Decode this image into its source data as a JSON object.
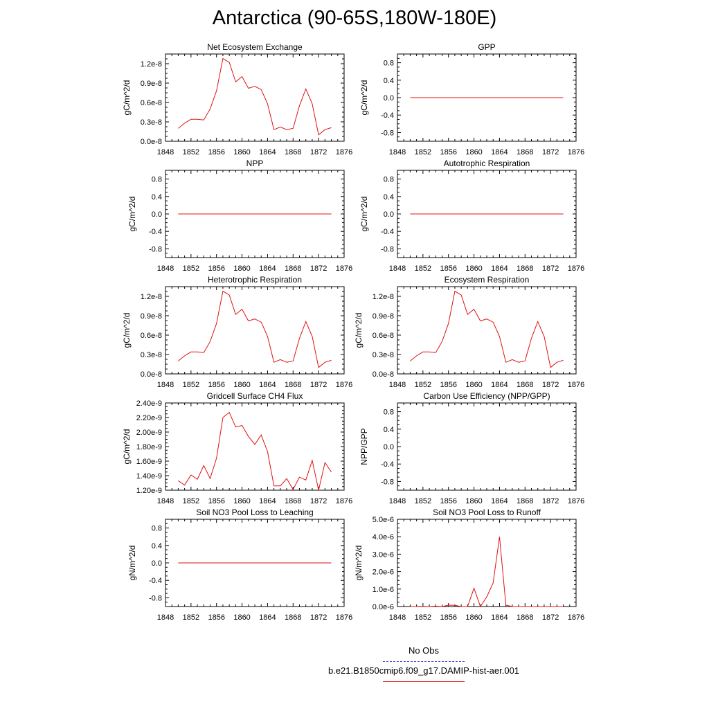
{
  "page": {
    "title": "Antarctica (90-65S,180W-180E)"
  },
  "legend": {
    "obs_label": "No Obs",
    "obs_color": "#3a3ae0",
    "case_label": "b.e21.B1850cmip6.f09_g17.DAMIP-hist-aer.001",
    "case_color": "#e01010"
  },
  "chart_data": [
    {
      "type": "line",
      "title": "Net Ecosystem Exchange",
      "ylabel": "gC/m^2/d",
      "xlim": [
        1848,
        1876
      ],
      "xticks": [
        "1848",
        "1852",
        "1856",
        "1860",
        "1864",
        "1868",
        "1872",
        "1876"
      ],
      "ylim": [
        0,
        1.35e-08
      ],
      "yticks": [
        0,
        3e-09,
        6e-09,
        9e-09,
        1.2e-08
      ],
      "yticklabels": [
        "0.0e-8",
        "0.3e-8",
        "0.6e-8",
        "0.9e-8",
        "1.2e-8"
      ],
      "x": [
        1850,
        1851,
        1852,
        1853,
        1854,
        1855,
        1856,
        1857,
        1858,
        1859,
        1860,
        1861,
        1862,
        1863,
        1864,
        1865,
        1866,
        1867,
        1868,
        1869,
        1870,
        1871,
        1872,
        1873,
        1874
      ],
      "series": [
        {
          "color": "#e01010",
          "values": [
            2e-09,
            2.8e-09,
            3.4e-09,
            3.4e-09,
            3.3e-09,
            5e-09,
            7.8e-09,
            1.28e-08,
            1.22e-08,
            9.2e-09,
            1e-08,
            8.2e-09,
            8.5e-09,
            8e-09,
            5.8e-09,
            1.8e-09,
            2.2e-09,
            1.8e-09,
            2e-09,
            5.5e-09,
            8.1e-09,
            5.8e-09,
            1e-09,
            1.8e-09,
            2.1e-09
          ]
        }
      ]
    },
    {
      "type": "line",
      "title": "GPP",
      "ylabel": "gC/m^2/d",
      "xlim": [
        1848,
        1876
      ],
      "xticks": [
        "1848",
        "1852",
        "1856",
        "1860",
        "1864",
        "1868",
        "1872",
        "1876"
      ],
      "ylim": [
        -1,
        1
      ],
      "yticks": [
        -0.8,
        -0.4,
        0,
        0.4,
        0.8
      ],
      "yticklabels": [
        "-0.8",
        "-0.4",
        "0.0",
        "0.4",
        "0.8"
      ],
      "x": [
        1850,
        1874
      ],
      "series": [
        {
          "color": "#e01010",
          "values": [
            0,
            0
          ]
        }
      ]
    },
    {
      "type": "line",
      "title": "NPP",
      "ylabel": "gC/m^2/d",
      "xlim": [
        1848,
        1876
      ],
      "xticks": [
        "1848",
        "1852",
        "1856",
        "1860",
        "1864",
        "1868",
        "1872",
        "1876"
      ],
      "ylim": [
        -1,
        1
      ],
      "yticks": [
        -0.8,
        -0.4,
        0,
        0.4,
        0.8
      ],
      "yticklabels": [
        "-0.8",
        "-0.4",
        "0.0",
        "0.4",
        "0.8"
      ],
      "x": [
        1850,
        1874
      ],
      "series": [
        {
          "color": "#e01010",
          "values": [
            0,
            0
          ]
        }
      ]
    },
    {
      "type": "line",
      "title": "Autotrophic Respiration",
      "ylabel": "gC/m^2/d",
      "xlim": [
        1848,
        1876
      ],
      "xticks": [
        "1848",
        "1852",
        "1856",
        "1860",
        "1864",
        "1868",
        "1872",
        "1876"
      ],
      "ylim": [
        -1,
        1
      ],
      "yticks": [
        -0.8,
        -0.4,
        0,
        0.4,
        0.8
      ],
      "yticklabels": [
        "-0.8",
        "-0.4",
        "0.0",
        "0.4",
        "0.8"
      ],
      "x": [
        1850,
        1874
      ],
      "series": [
        {
          "color": "#e01010",
          "values": [
            0,
            0
          ]
        }
      ]
    },
    {
      "type": "line",
      "title": "Heterotrophic Respiration",
      "ylabel": "gC/m^2/d",
      "xlim": [
        1848,
        1876
      ],
      "xticks": [
        "1848",
        "1852",
        "1856",
        "1860",
        "1864",
        "1868",
        "1872",
        "1876"
      ],
      "ylim": [
        0,
        1.35e-08
      ],
      "yticks": [
        0,
        3e-09,
        6e-09,
        9e-09,
        1.2e-08
      ],
      "yticklabels": [
        "0.0e-8",
        "0.3e-8",
        "0.6e-8",
        "0.9e-8",
        "1.2e-8"
      ],
      "x": [
        1850,
        1851,
        1852,
        1853,
        1854,
        1855,
        1856,
        1857,
        1858,
        1859,
        1860,
        1861,
        1862,
        1863,
        1864,
        1865,
        1866,
        1867,
        1868,
        1869,
        1870,
        1871,
        1872,
        1873,
        1874
      ],
      "series": [
        {
          "color": "#e01010",
          "values": [
            2e-09,
            2.8e-09,
            3.4e-09,
            3.4e-09,
            3.3e-09,
            5e-09,
            7.8e-09,
            1.28e-08,
            1.22e-08,
            9.2e-09,
            1e-08,
            8.2e-09,
            8.5e-09,
            8e-09,
            5.8e-09,
            1.8e-09,
            2.2e-09,
            1.8e-09,
            2e-09,
            5.5e-09,
            8.1e-09,
            5.8e-09,
            1e-09,
            1.8e-09,
            2.1e-09
          ]
        }
      ]
    },
    {
      "type": "line",
      "title": "Ecosystem Respiration",
      "ylabel": "gC/m^2/d",
      "xlim": [
        1848,
        1876
      ],
      "xticks": [
        "1848",
        "1852",
        "1856",
        "1860",
        "1864",
        "1868",
        "1872",
        "1876"
      ],
      "ylim": [
        0,
        1.35e-08
      ],
      "yticks": [
        0,
        3e-09,
        6e-09,
        9e-09,
        1.2e-08
      ],
      "yticklabels": [
        "0.0e-8",
        "0.3e-8",
        "0.6e-8",
        "0.9e-8",
        "1.2e-8"
      ],
      "x": [
        1850,
        1851,
        1852,
        1853,
        1854,
        1855,
        1856,
        1857,
        1858,
        1859,
        1860,
        1861,
        1862,
        1863,
        1864,
        1865,
        1866,
        1867,
        1868,
        1869,
        1870,
        1871,
        1872,
        1873,
        1874
      ],
      "series": [
        {
          "color": "#e01010",
          "values": [
            2e-09,
            2.8e-09,
            3.4e-09,
            3.4e-09,
            3.3e-09,
            5e-09,
            7.8e-09,
            1.28e-08,
            1.22e-08,
            9.2e-09,
            1e-08,
            8.2e-09,
            8.5e-09,
            8e-09,
            5.8e-09,
            1.8e-09,
            2.2e-09,
            1.8e-09,
            2e-09,
            5.5e-09,
            8.1e-09,
            5.8e-09,
            1e-09,
            1.8e-09,
            2.1e-09
          ]
        }
      ]
    },
    {
      "type": "line",
      "title": "Gridcell Surface CH4 Flux",
      "ylabel": "gC/m^2/d",
      "xlim": [
        1848,
        1876
      ],
      "xticks": [
        "1848",
        "1852",
        "1856",
        "1860",
        "1864",
        "1868",
        "1872",
        "1876"
      ],
      "ylim": [
        1.2e-09,
        2.4e-09
      ],
      "yticks": [
        1.2e-09,
        1.4e-09,
        1.6e-09,
        1.8e-09,
        2e-09,
        2.2e-09,
        2.4e-09
      ],
      "yticklabels": [
        "1.20e-9",
        "1.40e-9",
        "1.60e-9",
        "1.80e-9",
        "2.00e-9",
        "2.20e-9",
        "2.40e-9"
      ],
      "x": [
        1850,
        1851,
        1852,
        1853,
        1854,
        1855,
        1856,
        1857,
        1858,
        1859,
        1860,
        1861,
        1862,
        1863,
        1864,
        1865,
        1866,
        1867,
        1868,
        1869,
        1870,
        1871,
        1872,
        1873,
        1874
      ],
      "series": [
        {
          "color": "#e01010",
          "values": [
            1.33e-09,
            1.27e-09,
            1.41e-09,
            1.35e-09,
            1.54e-09,
            1.36e-09,
            1.64e-09,
            2.2e-09,
            2.27e-09,
            2.07e-09,
            2.09e-09,
            1.94e-09,
            1.83e-09,
            1.96e-09,
            1.73e-09,
            1.26e-09,
            1.26e-09,
            1.36e-09,
            1.21e-09,
            1.38e-09,
            1.34e-09,
            1.61e-09,
            1.2e-09,
            1.58e-09,
            1.45e-09
          ]
        }
      ]
    },
    {
      "type": "line",
      "title": "Carbon Use Efficiency (NPP/GPP)",
      "ylabel": "NPP/GPP",
      "xlim": [
        1848,
        1876
      ],
      "xticks": [
        "1848",
        "1852",
        "1856",
        "1860",
        "1864",
        "1868",
        "1872",
        "1876"
      ],
      "ylim": [
        -1,
        1
      ],
      "yticks": [
        -0.8,
        -0.4,
        0,
        0.4,
        0.8
      ],
      "yticklabels": [
        "-0.8",
        "-0.4",
        "0.0",
        "0.4",
        "0.8"
      ],
      "x": [],
      "series": []
    },
    {
      "type": "line",
      "title": "Soil NO3 Pool Loss to Leaching",
      "ylabel": "gN/m^2/d",
      "xlim": [
        1848,
        1876
      ],
      "xticks": [
        "1848",
        "1852",
        "1856",
        "1860",
        "1864",
        "1868",
        "1872",
        "1876"
      ],
      "ylim": [
        -1,
        1
      ],
      "yticks": [
        -0.8,
        -0.4,
        0,
        0.4,
        0.8
      ],
      "yticklabels": [
        "-0.8",
        "-0.4",
        "0.0",
        "0.4",
        "0.8"
      ],
      "x": [
        1850,
        1874
      ],
      "series": [
        {
          "color": "#e01010",
          "values": [
            0,
            0
          ]
        }
      ]
    },
    {
      "type": "line",
      "title": "Soil NO3 Pool Loss to Runoff",
      "ylabel": "gN/m^2/d",
      "xlim": [
        1848,
        1876
      ],
      "xticks": [
        "1848",
        "1852",
        "1856",
        "1860",
        "1864",
        "1868",
        "1872",
        "1876"
      ],
      "ylim": [
        0,
        5e-06
      ],
      "yticks": [
        0,
        1e-06,
        2e-06,
        3e-06,
        4e-06,
        5e-06
      ],
      "yticklabels": [
        "0.0e-6",
        "1.0e-6",
        "2.0e-6",
        "3.0e-6",
        "4.0e-6",
        "5.0e-6"
      ],
      "x": [
        1850,
        1851,
        1852,
        1853,
        1854,
        1855,
        1856,
        1857,
        1858,
        1859,
        1860,
        1861,
        1862,
        1863,
        1864,
        1865,
        1866,
        1867,
        1868,
        1869,
        1870,
        1871,
        1872,
        1873,
        1874
      ],
      "series": [
        {
          "color": "#e01010",
          "values": [
            0,
            0,
            1e-08,
            0,
            2e-08,
            0,
            8e-08,
            7e-08,
            0,
            0,
            1.05e-06,
            0,
            5.5e-07,
            1.35e-06,
            4e-06,
            8e-08,
            0,
            0,
            0,
            0,
            0,
            0,
            0,
            0,
            0
          ]
        }
      ]
    }
  ]
}
